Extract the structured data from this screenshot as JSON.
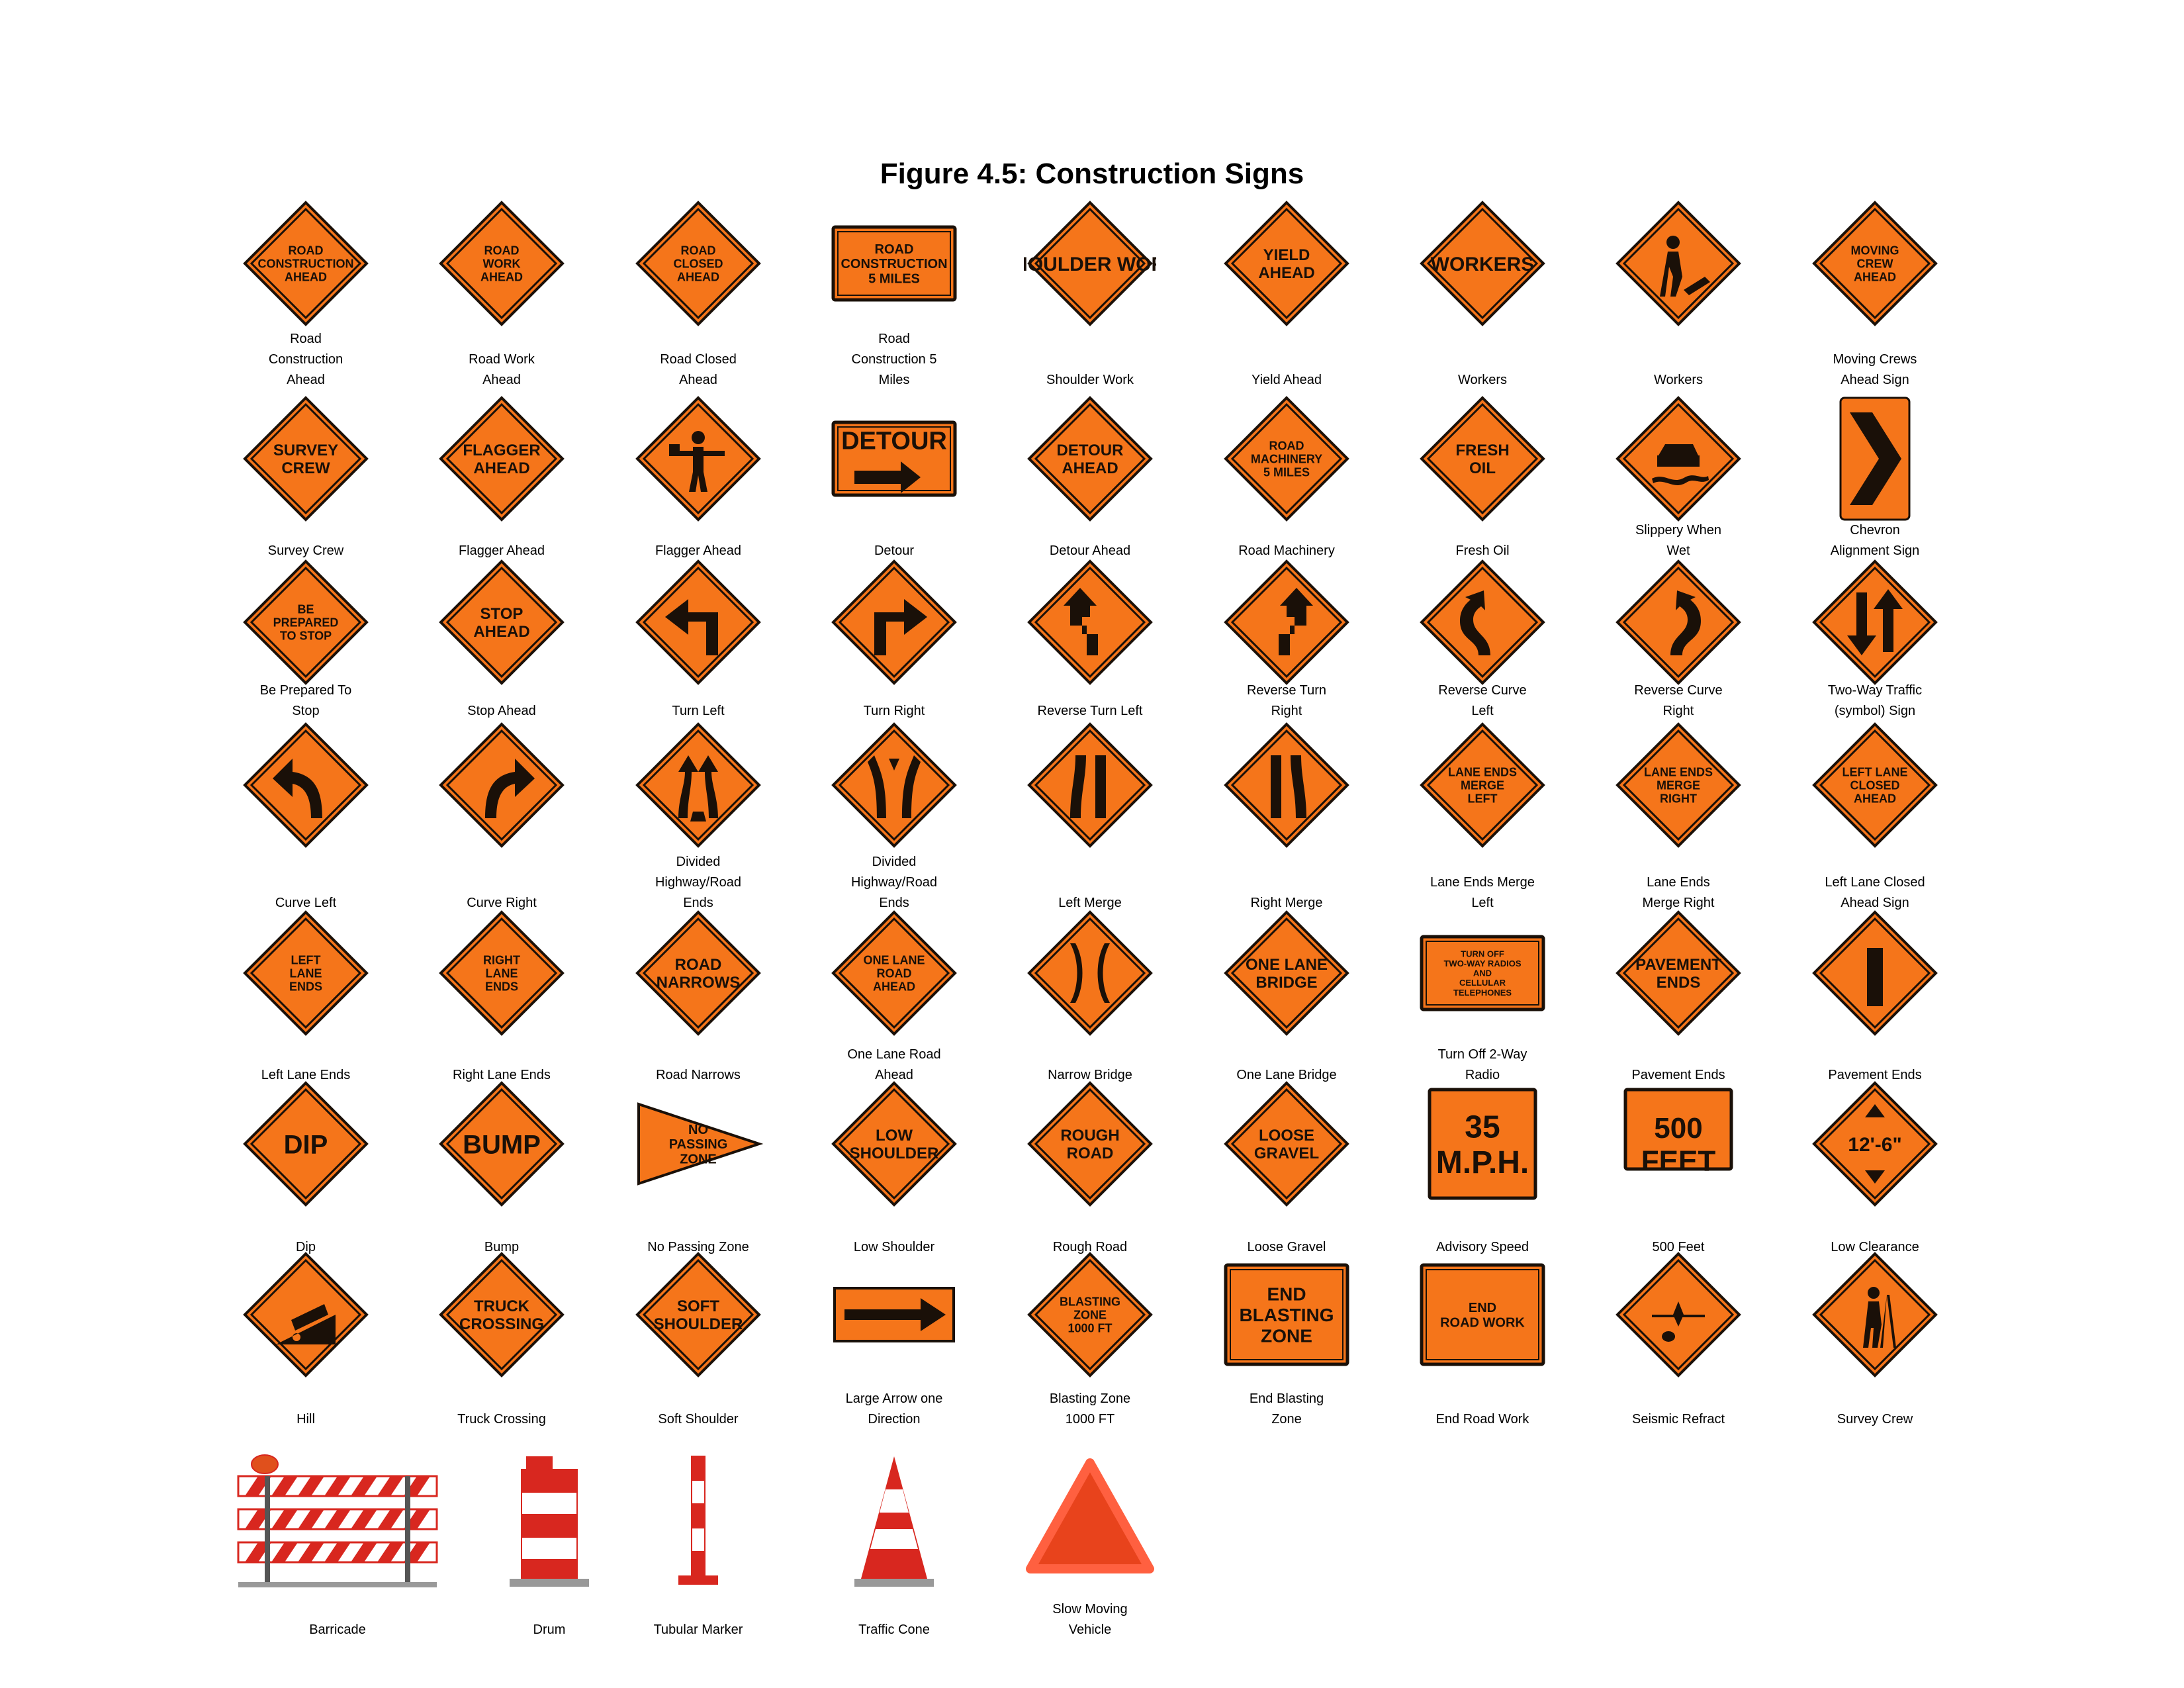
{
  "title": "Figure 4.5: Construction Signs",
  "colors": {
    "sign_orange": "#f5751a",
    "sign_border": "#1a1008",
    "barricade_red": "#d8271f"
  },
  "rows": [
    [
      {
        "label": "Road\nConstruction\nAhead",
        "shape": "diamond",
        "text": [
          "ROAD",
          "CONSTRUCTION",
          "AHEAD"
        ]
      },
      {
        "label": "Road Work\nAhead",
        "shape": "diamond",
        "text": [
          "ROAD",
          "WORK",
          "AHEAD"
        ]
      },
      {
        "label": "Road Closed\nAhead",
        "shape": "diamond",
        "text": [
          "ROAD",
          "CLOSED",
          "AHEAD"
        ]
      },
      {
        "label": "Road\nConstruction 5\nMiles",
        "shape": "rect",
        "text": [
          "ROAD",
          "CONSTRUCTION",
          "5 MILES"
        ]
      },
      {
        "label": "Shoulder Work",
        "shape": "diamond",
        "text": [
          "SHOULDER WORK"
        ]
      },
      {
        "label": "Yield Ahead",
        "shape": "diamond",
        "text": [
          "YIELD",
          "AHEAD"
        ]
      },
      {
        "label": "Workers",
        "shape": "diamond",
        "text": [
          "WORKERS"
        ]
      },
      {
        "label": "Workers",
        "shape": "diamond",
        "icon": "worker-symbol"
      },
      {
        "label": "Moving Crews\nAhead Sign",
        "shape": "diamond",
        "text": [
          "MOVING",
          "CREW",
          "AHEAD"
        ]
      }
    ],
    [
      {
        "label": "Survey Crew",
        "shape": "diamond",
        "text": [
          "SURVEY",
          "CREW"
        ]
      },
      {
        "label": "Flagger Ahead",
        "shape": "diamond",
        "text": [
          "FLAGGER",
          "AHEAD"
        ]
      },
      {
        "label": "Flagger Ahead",
        "shape": "diamond",
        "icon": "flagger-symbol"
      },
      {
        "label": "Detour",
        "shape": "rect",
        "text": [
          "DETOUR"
        ],
        "icon": "right-arrow"
      },
      {
        "label": "Detour Ahead",
        "shape": "diamond",
        "text": [
          "DETOUR",
          "AHEAD"
        ]
      },
      {
        "label": "Road Machinery",
        "shape": "diamond",
        "text": [
          "ROAD",
          "MACHINERY",
          "5 MILES"
        ]
      },
      {
        "label": "Fresh Oil",
        "shape": "diamond",
        "text": [
          "FRESH",
          "OIL"
        ]
      },
      {
        "label": "Slippery When\nWet",
        "shape": "diamond",
        "icon": "slippery-car"
      },
      {
        "label": "Chevron\nAlignment Sign",
        "shape": "chevron",
        "icon": "chevron"
      }
    ],
    [
      {
        "label": "Be Prepared To\nStop",
        "shape": "diamond",
        "text": [
          "BE",
          "PREPARED",
          "TO STOP"
        ]
      },
      {
        "label": "Stop Ahead",
        "shape": "diamond",
        "text": [
          "STOP",
          "AHEAD"
        ]
      },
      {
        "label": "Turn Left",
        "shape": "diamond",
        "icon": "turn-left-arrow"
      },
      {
        "label": "Turn Right",
        "shape": "diamond",
        "icon": "turn-right-arrow"
      },
      {
        "label": "Reverse Turn Left",
        "shape": "diamond",
        "icon": "reverse-turn-left-arrow"
      },
      {
        "label": "Reverse Turn\nRight",
        "shape": "diamond",
        "icon": "reverse-turn-right-arrow"
      },
      {
        "label": "Reverse Curve\nLeft",
        "shape": "diamond",
        "icon": "reverse-curve-left-arrow"
      },
      {
        "label": "Reverse Curve\nRight",
        "shape": "diamond",
        "icon": "reverse-curve-right-arrow"
      },
      {
        "label": "Two-Way Traffic\n(symbol) Sign",
        "shape": "diamond",
        "icon": "two-way-arrows"
      }
    ],
    [
      {
        "label": "Curve Left",
        "shape": "diamond",
        "icon": "curve-left-arrow"
      },
      {
        "label": "Curve Right",
        "shape": "diamond",
        "icon": "curve-right-arrow"
      },
      {
        "label": "Divided\nHighway/Road\nEnds",
        "shape": "diamond",
        "icon": "divided-highway-symbol"
      },
      {
        "label": "Divided\nHighway/Road\nEnds",
        "shape": "diamond",
        "icon": "divided-highway-ends-symbol"
      },
      {
        "label": "Left Merge",
        "shape": "diamond",
        "icon": "left-merge-lines"
      },
      {
        "label": "Right Merge",
        "shape": "diamond",
        "icon": "right-merge-lines"
      },
      {
        "label": "Lane Ends Merge\nLeft",
        "shape": "diamond",
        "text": [
          "LANE ENDS",
          "MERGE",
          "LEFT"
        ]
      },
      {
        "label": "Lane Ends\nMerge Right",
        "shape": "diamond",
        "text": [
          "LANE ENDS",
          "MERGE",
          "RIGHT"
        ]
      },
      {
        "label": "Left Lane Closed\nAhead Sign",
        "shape": "diamond",
        "text": [
          "LEFT LANE",
          "CLOSED",
          "AHEAD"
        ]
      }
    ],
    [
      {
        "label": "Left Lane Ends",
        "shape": "diamond",
        "text": [
          "LEFT",
          "LANE",
          "ENDS"
        ]
      },
      {
        "label": "Right Lane Ends",
        "shape": "diamond",
        "text": [
          "RIGHT",
          "LANE",
          "ENDS"
        ]
      },
      {
        "label": "Road Narrows",
        "shape": "diamond",
        "text": [
          "ROAD",
          "NARROWS"
        ]
      },
      {
        "label": "One Lane Road\nAhead",
        "shape": "diamond",
        "text": [
          "ONE LANE",
          "ROAD",
          "AHEAD"
        ]
      },
      {
        "label": "Narrow Bridge",
        "shape": "diamond",
        "icon": "narrow-bridge-symbol"
      },
      {
        "label": "One Lane Bridge",
        "shape": "diamond",
        "text": [
          "ONE LANE",
          "BRIDGE"
        ]
      },
      {
        "label": "Turn Off 2-Way\nRadio",
        "shape": "rect",
        "text": [
          "TURN OFF",
          "TWO-WAY RADIOS",
          "AND",
          "CELLULAR",
          "TELEPHONES"
        ]
      },
      {
        "label": "Pavement Ends",
        "shape": "diamond",
        "text": [
          "PAVEMENT",
          "ENDS"
        ]
      },
      {
        "label": "Pavement Ends",
        "shape": "diamond",
        "icon": "pavement-ends-symbol"
      }
    ],
    [
      {
        "label": "Dip",
        "shape": "diamond",
        "text": [
          "DIP"
        ]
      },
      {
        "label": "Bump",
        "shape": "diamond",
        "text": [
          "BUMP"
        ]
      },
      {
        "label": "No Passing Zone",
        "shape": "pennant",
        "text": [
          "NO",
          "PASSING",
          "ZONE"
        ]
      },
      {
        "label": "Low Shoulder",
        "shape": "diamond",
        "text": [
          "LOW",
          "SHOULDER"
        ]
      },
      {
        "label": "Rough Road",
        "shape": "diamond",
        "text": [
          "ROUGH",
          "ROAD"
        ]
      },
      {
        "label": "Loose Gravel",
        "shape": "diamond",
        "text": [
          "LOOSE",
          "GRAVEL"
        ]
      },
      {
        "label": "Advisory Speed",
        "shape": "square",
        "text": [
          "35",
          "M.P.H."
        ]
      },
      {
        "label": "500 Feet",
        "shape": "plaque",
        "text": [
          "500",
          "FEET"
        ]
      },
      {
        "label": "Low Clearance",
        "shape": "diamond",
        "text": [
          "12'-6\""
        ],
        "icon": "clearance-arrows"
      }
    ],
    [
      {
        "label": "Hill",
        "shape": "diamond",
        "icon": "hill-truck-symbol"
      },
      {
        "label": "Truck Crossing",
        "shape": "diamond",
        "text": [
          "TRUCK",
          "CROSSING"
        ]
      },
      {
        "label": "Soft Shoulder",
        "shape": "diamond",
        "text": [
          "SOFT",
          "SHOULDER"
        ]
      },
      {
        "label": "Large Arrow one\nDirection",
        "shape": "arrow-panel",
        "icon": "large-arrow"
      },
      {
        "label": "Blasting Zone\n1000 FT",
        "shape": "diamond",
        "text": [
          "BLASTING",
          "ZONE",
          "1000 FT"
        ]
      },
      {
        "label": "End Blasting\nZone",
        "shape": "rect-big",
        "text": [
          "END",
          "BLASTING",
          "ZONE"
        ]
      },
      {
        "label": "End Road Work",
        "shape": "rect-wide",
        "text": [
          "END",
          "ROAD WORK"
        ]
      },
      {
        "label": "Seismic Refract",
        "shape": "diamond",
        "icon": "seismic-symbol"
      },
      {
        "label": "Survey Crew",
        "shape": "diamond",
        "icon": "surveyor-symbol"
      }
    ]
  ],
  "devices": [
    {
      "label": "Barricade",
      "icon": "barricade"
    },
    {
      "label": "Drum",
      "icon": "drum"
    },
    {
      "label": "Tubular Marker",
      "icon": "tubular-marker"
    },
    {
      "label": "Traffic Cone",
      "icon": "traffic-cone"
    },
    {
      "label": "Slow Moving\nVehicle",
      "icon": "slow-moving-triangle"
    }
  ]
}
